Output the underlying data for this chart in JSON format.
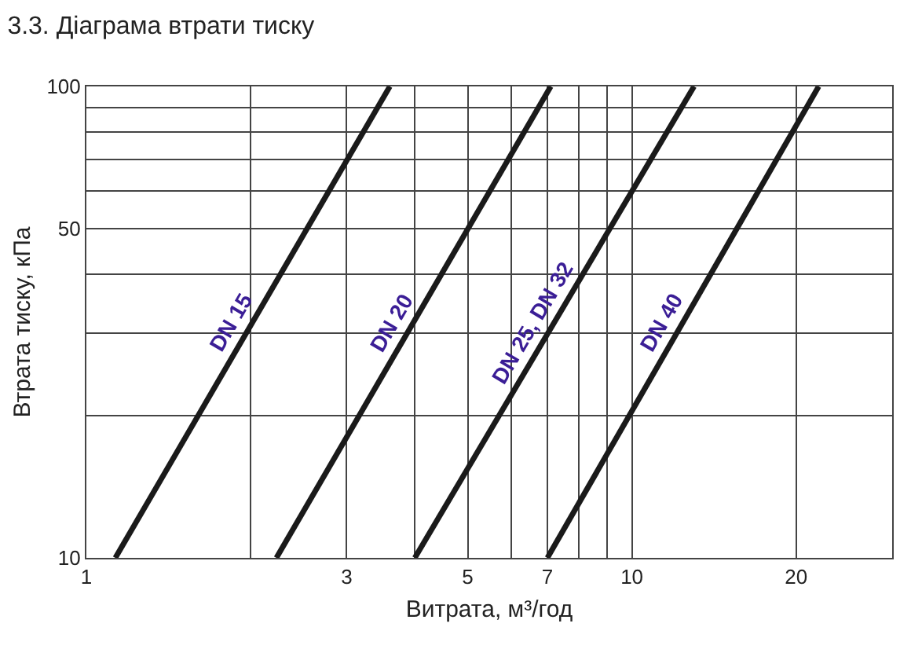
{
  "chart_data": {
    "type": "line",
    "title": "3.3. Діаграма втрати тиску",
    "xlabel": "Витрата, м³/год",
    "ylabel": "Втрата тиску, кПа",
    "log": "xy",
    "grid": true,
    "legend": false,
    "marker": "none",
    "line_style": "solid",
    "xlim": [
      1,
      30
    ],
    "ylim": [
      10,
      100
    ],
    "xticks": [
      1,
      {
        "value": 2,
        "label": null
      },
      3,
      {
        "value": 4,
        "label": null
      },
      5,
      {
        "value": 6,
        "label": null
      },
      7,
      {
        "value": 8,
        "label": null
      },
      {
        "value": 9,
        "label": null
      },
      10,
      20,
      {
        "value": 30,
        "label": null
      }
    ],
    "yticks": [
      10,
      {
        "value": 20,
        "label": null
      },
      {
        "value": 30,
        "label": null
      },
      {
        "value": 40,
        "label": null
      },
      50,
      {
        "value": 60,
        "label": null
      },
      {
        "value": 70,
        "label": null
      },
      {
        "value": 80,
        "label": null
      },
      {
        "value": 90,
        "label": null
      },
      100
    ],
    "series": [
      {
        "name": "DN 15",
        "color": "#1a1a1a",
        "x": [
          1.13,
          3.6
        ],
        "values": [
          10,
          100
        ]
      },
      {
        "name": "DN 20",
        "color": "#1a1a1a",
        "x": [
          2.23,
          7.1
        ],
        "values": [
          10,
          100
        ]
      },
      {
        "name": "DN 25, DN 32",
        "color": "#1a1a1a",
        "x": [
          4.0,
          13
        ],
        "values": [
          10,
          100
        ]
      },
      {
        "name": "DN 40",
        "color": "#1a1a1a",
        "x": [
          7.0,
          22
        ],
        "values": [
          10,
          100
        ]
      }
    ]
  }
}
